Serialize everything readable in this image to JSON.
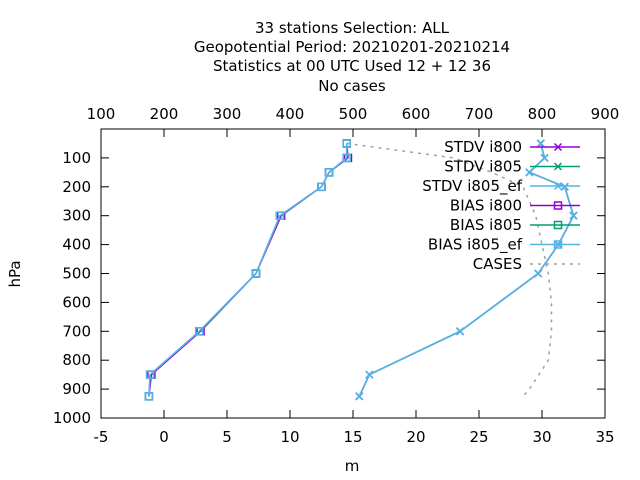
{
  "chart_data": {
    "type": "line",
    "title_lines": [
      "33 stations Selection: ALL",
      "Geopotential  Period: 20210201-20210214",
      "Statistics at 00 UTC  Used  12 + 12 36",
      "No cases"
    ],
    "xlabel": "m",
    "ylabel": "hPa",
    "xlim": [
      -5,
      35
    ],
    "ylim": [
      1000,
      0
    ],
    "x2lim": [
      100,
      900
    ],
    "x_ticks": [
      "-5",
      "0",
      "5",
      "10",
      "15",
      "20",
      "25",
      "30",
      "35"
    ],
    "x2_ticks": [
      "100",
      "200",
      "300",
      "400",
      "500",
      "600",
      "700",
      "800",
      "900"
    ],
    "y_ticks": [
      "100",
      "200",
      "300",
      "400",
      "500",
      "600",
      "700",
      "800",
      "900",
      "1000"
    ],
    "grid": false,
    "legend_position": "top-right",
    "series": [
      {
        "name": "STDV i800",
        "marker": "x",
        "color": "#9400d3",
        "points": [
          [
            29.9,
            50
          ],
          [
            30.2,
            100
          ],
          [
            29.0,
            150
          ],
          [
            31.8,
            200
          ],
          [
            32.5,
            300
          ],
          [
            31.3,
            400
          ],
          [
            29.7,
            500
          ],
          [
            23.5,
            700
          ],
          [
            16.3,
            850
          ],
          [
            15.5,
            925
          ]
        ]
      },
      {
        "name": "STDV i805",
        "marker": "x",
        "color": "#009e73",
        "points": [
          [
            29.9,
            50
          ],
          [
            30.2,
            100
          ],
          [
            29.0,
            150
          ],
          [
            31.8,
            200
          ],
          [
            32.5,
            300
          ],
          [
            31.3,
            400
          ],
          [
            29.7,
            500
          ],
          [
            23.5,
            700
          ],
          [
            16.3,
            850
          ],
          [
            15.5,
            925
          ]
        ]
      },
      {
        "name": "STDV i805_ef",
        "marker": "x",
        "color": "#56b4e9",
        "points": [
          [
            29.9,
            50
          ],
          [
            30.2,
            100
          ],
          [
            29.0,
            150
          ],
          [
            31.8,
            200
          ],
          [
            32.5,
            300
          ],
          [
            31.3,
            400
          ],
          [
            29.7,
            500
          ],
          [
            23.5,
            700
          ],
          [
            16.3,
            850
          ],
          [
            15.5,
            925
          ]
        ]
      },
      {
        "name": "BIAS i800",
        "marker": "square",
        "color": "#9400d3",
        "points": [
          [
            14.5,
            50
          ],
          [
            14.6,
            100
          ],
          [
            13.1,
            150
          ],
          [
            12.5,
            200
          ],
          [
            9.3,
            300
          ],
          [
            7.3,
            500
          ],
          [
            2.9,
            700
          ],
          [
            -1.0,
            850
          ],
          [
            -1.2,
            925
          ]
        ]
      },
      {
        "name": "BIAS i805",
        "marker": "square",
        "color": "#009e73",
        "points": [
          [
            14.5,
            50
          ],
          [
            14.5,
            100
          ],
          [
            13.1,
            150
          ],
          [
            12.5,
            200
          ],
          [
            9.2,
            300
          ],
          [
            7.3,
            500
          ],
          [
            2.8,
            700
          ],
          [
            -1.1,
            850
          ],
          [
            -1.2,
            925
          ]
        ]
      },
      {
        "name": "BIAS i805_ef",
        "marker": "square",
        "color": "#56b4e9",
        "points": [
          [
            14.5,
            50
          ],
          [
            14.5,
            100
          ],
          [
            13.1,
            150
          ],
          [
            12.5,
            200
          ],
          [
            9.2,
            300
          ],
          [
            7.3,
            500
          ],
          [
            2.8,
            700
          ],
          [
            -1.1,
            850
          ],
          [
            -1.2,
            925
          ]
        ]
      },
      {
        "name": "CASES",
        "axis": "x2",
        "dashed": true,
        "color": "#a0a0a0",
        "points": [
          [
            490,
            50
          ],
          [
            660,
            100
          ],
          [
            720,
            150
          ],
          [
            770,
            200
          ],
          [
            790,
            300
          ],
          [
            800,
            400
          ],
          [
            810,
            500
          ],
          [
            815,
            600
          ],
          [
            815,
            700
          ],
          [
            810,
            800
          ],
          [
            780,
            900
          ],
          [
            770,
            925
          ]
        ]
      }
    ]
  }
}
